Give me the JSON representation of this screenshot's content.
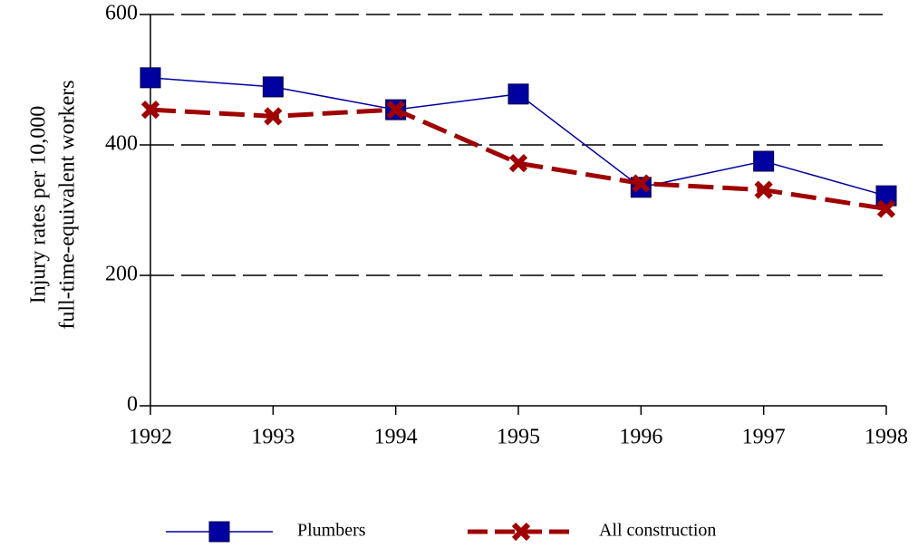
{
  "chart_data": {
    "type": "line",
    "ylabel": [
      "Injury rates per 10,000",
      "full-time-equivalent workers"
    ],
    "x": [
      1992,
      1993,
      1994,
      1995,
      1996,
      1997,
      1998
    ],
    "xlim": [
      1992,
      1998
    ],
    "xticks": [
      1992,
      1993,
      1994,
      1995,
      1996,
      1997,
      1998
    ],
    "ylim": [
      0,
      600
    ],
    "yticks": [
      0,
      200,
      400,
      600
    ],
    "grid": true,
    "series": [
      {
        "name": "Plumbers",
        "color": "#0000a0",
        "marker": "square",
        "values": [
          503,
          489,
          454,
          478,
          335,
          375,
          322
        ]
      },
      {
        "name": "All construction",
        "color": "#a00000",
        "marker": "x",
        "values": [
          454,
          444,
          454,
          372,
          341,
          331,
          302
        ]
      }
    ]
  }
}
